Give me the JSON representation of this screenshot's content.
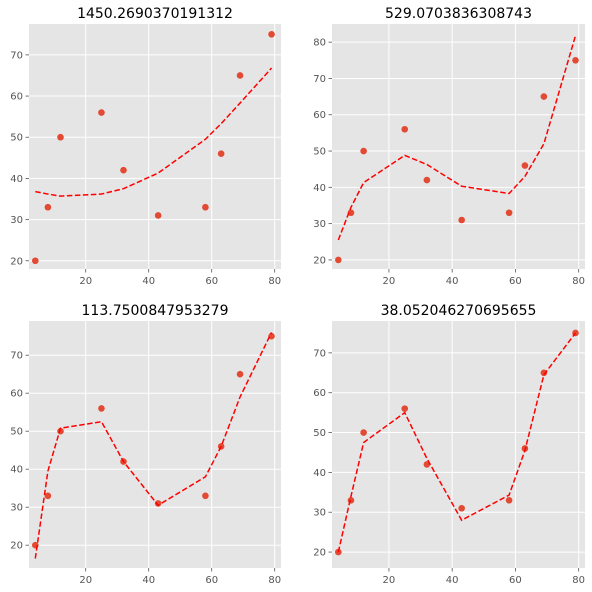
{
  "figure": {
    "colors": {
      "panel_bg": "#e5e5e5",
      "grid": "#ffffff",
      "points": "#e24a33",
      "fit_line": "#ff0000",
      "tick_text": "#555555"
    }
  },
  "chart_data": [
    {
      "type": "scatter",
      "title": "1450.2690370191312",
      "xlabel": "",
      "ylabel": "",
      "xlim": [
        2,
        82
      ],
      "ylim": [
        18,
        77.5
      ],
      "xticks": [
        20,
        40,
        60,
        80
      ],
      "yticks": [
        20,
        30,
        40,
        50,
        60,
        70
      ],
      "grid": true,
      "series": [
        {
          "type": "scatter",
          "x": [
            4,
            8,
            12,
            25,
            32,
            43,
            58,
            63,
            69,
            79
          ],
          "y": [
            20,
            33,
            50,
            56,
            42,
            31,
            33,
            46,
            65,
            75
          ]
        },
        {
          "type": "line",
          "style": "dashed",
          "x": [
            4,
            8,
            12,
            25,
            32,
            43,
            58,
            63,
            69,
            79
          ],
          "y": [
            36.8,
            36.2,
            35.7,
            36.2,
            37.5,
            41.3,
            49.5,
            53.3,
            58.3,
            66.8
          ]
        }
      ]
    },
    {
      "type": "scatter",
      "title": "529.0703836308743",
      "xlabel": "",
      "ylabel": "",
      "xlim": [
        2,
        82
      ],
      "ylim": [
        17.5,
        85
      ],
      "xticks": [
        20,
        40,
        60,
        80
      ],
      "yticks": [
        20,
        30,
        40,
        50,
        60,
        70,
        80
      ],
      "grid": true,
      "series": [
        {
          "type": "scatter",
          "x": [
            4,
            8,
            12,
            25,
            32,
            43,
            58,
            63,
            69,
            79
          ],
          "y": [
            20,
            33,
            50,
            56,
            42,
            31,
            33,
            46,
            65,
            75
          ]
        },
        {
          "type": "line",
          "style": "dashed",
          "x": [
            4,
            8,
            12,
            25,
            32,
            43,
            58,
            63,
            69,
            79
          ],
          "y": [
            25.5,
            34.5,
            41.3,
            48.8,
            46.3,
            40.3,
            38.3,
            43,
            52,
            81.8
          ]
        }
      ]
    },
    {
      "type": "scatter",
      "title": "113.7500847953279",
      "xlabel": "",
      "ylabel": "",
      "xlim": [
        2,
        82
      ],
      "ylim": [
        14,
        79
      ],
      "xticks": [
        20,
        40,
        60,
        80
      ],
      "yticks": [
        20,
        30,
        40,
        50,
        60,
        70
      ],
      "grid": true,
      "series": [
        {
          "type": "scatter",
          "x": [
            4,
            8,
            12,
            25,
            32,
            43,
            58,
            63,
            69,
            79
          ],
          "y": [
            20,
            33,
            50,
            56,
            42,
            31,
            33,
            46,
            65,
            75
          ]
        },
        {
          "type": "line",
          "style": "dashed",
          "x": [
            4,
            8,
            12,
            25,
            32,
            43,
            58,
            63,
            69,
            79
          ],
          "y": [
            16.5,
            39.5,
            50.8,
            52.5,
            42,
            30.5,
            38,
            46,
            59,
            76
          ]
        }
      ]
    },
    {
      "type": "scatter",
      "title": "38.052046270695655",
      "xlabel": "",
      "ylabel": "",
      "xlim": [
        2,
        82
      ],
      "ylim": [
        16,
        78
      ],
      "xticks": [
        20,
        40,
        60,
        80
      ],
      "yticks": [
        20,
        30,
        40,
        50,
        60,
        70
      ],
      "grid": true,
      "series": [
        {
          "type": "scatter",
          "x": [
            4,
            8,
            12,
            25,
            32,
            43,
            58,
            63,
            69,
            79
          ],
          "y": [
            20,
            33,
            50,
            56,
            42,
            31,
            33,
            46,
            65,
            75
          ]
        },
        {
          "type": "line",
          "style": "dashed",
          "x": [
            4,
            8,
            12,
            25,
            32,
            43,
            58,
            63,
            69,
            79
          ],
          "y": [
            20,
            34,
            47.5,
            55,
            43.5,
            28,
            34.3,
            45.5,
            64.5,
            75
          ]
        }
      ]
    }
  ]
}
